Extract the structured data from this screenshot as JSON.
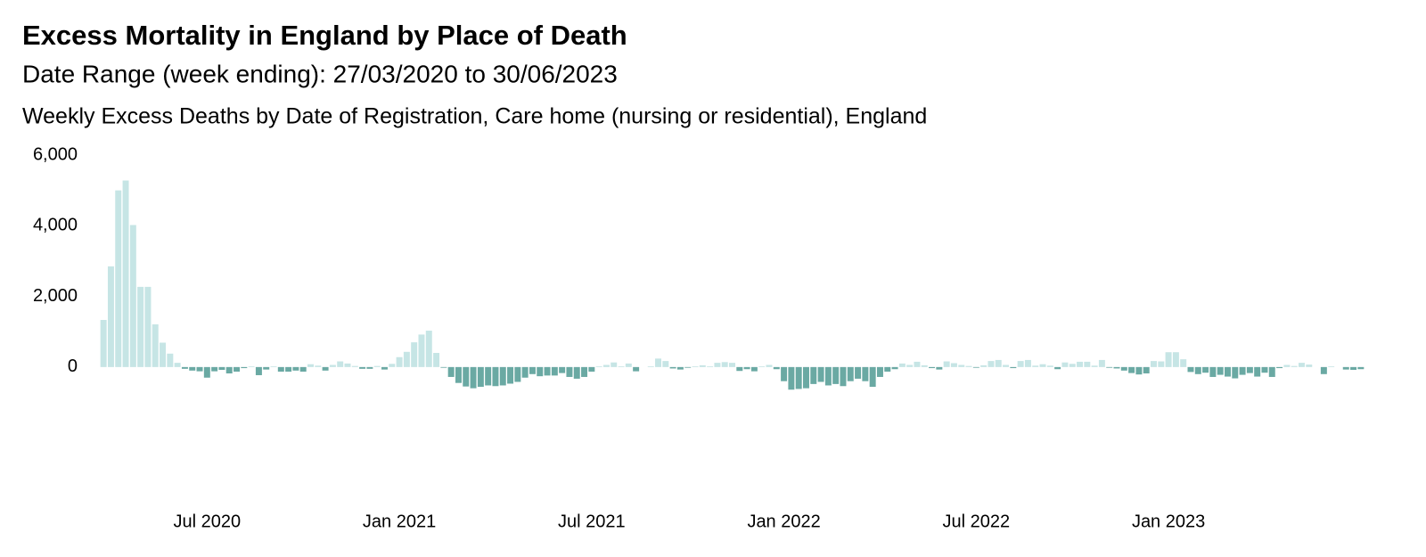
{
  "chart_data": {
    "type": "bar",
    "title": "Excess Mortality in England by Place of Death",
    "subtitle": "Date Range (week ending): 27/03/2020 to 30/06/2023",
    "chart_title": "Weekly Excess Deaths by Date of Registration, Care home (nursing or residential), England",
    "color_positive": "#c6e5e5",
    "color_negative": "#6aa9a3",
    "ylim": [
      -1000,
      6000
    ],
    "yticks": [
      {
        "value": 0,
        "label": "0"
      },
      {
        "value": 2000,
        "label": "2,000"
      },
      {
        "value": 4000,
        "label": "4,000"
      },
      {
        "value": 6000,
        "label": "6,000"
      }
    ],
    "categories": [
      null,
      null,
      null,
      null,
      null,
      null,
      null,
      null,
      null,
      null,
      null,
      null,
      null,
      null,
      "Jul 2020",
      null,
      null,
      null,
      null,
      null,
      null,
      null,
      null,
      null,
      null,
      null,
      null,
      null,
      null,
      null,
      null,
      null,
      null,
      null,
      null,
      null,
      null,
      null,
      null,
      null,
      "Jan 2021",
      null,
      null,
      null,
      null,
      null,
      null,
      null,
      null,
      null,
      null,
      null,
      null,
      null,
      null,
      null,
      null,
      null,
      null,
      null,
      null,
      null,
      null,
      null,
      null,
      null,
      "Jul 2021",
      null,
      null,
      null,
      null,
      null,
      null,
      null,
      null,
      null,
      null,
      null,
      null,
      null,
      null,
      null,
      null,
      null,
      null,
      null,
      null,
      null,
      null,
      null,
      null,
      null,
      "Jan 2022",
      null,
      null,
      null,
      null,
      null,
      null,
      null,
      null,
      null,
      null,
      null,
      null,
      null,
      null,
      null,
      null,
      null,
      null,
      null,
      null,
      null,
      null,
      null,
      null,
      null,
      "Jul 2022",
      null,
      null,
      null,
      null,
      null,
      null,
      null,
      null,
      null,
      null,
      null,
      null,
      null,
      null,
      null,
      null,
      null,
      null,
      null,
      null,
      null,
      null,
      null,
      null,
      null,
      "Jan 2023",
      null,
      null,
      null,
      null,
      null,
      null,
      null,
      null,
      null,
      null,
      null,
      null,
      null,
      null,
      null,
      null,
      null,
      null,
      null,
      null,
      null,
      null,
      null,
      null,
      null,
      null
    ],
    "values": [
      1333,
      2850,
      5000,
      5280,
      4020,
      2270,
      2270,
      1210,
      690,
      380,
      120,
      -50,
      -100,
      -120,
      -300,
      -120,
      -80,
      -180,
      -130,
      -30,
      20,
      -230,
      -70,
      20,
      -130,
      -130,
      -100,
      -130,
      80,
      40,
      -100,
      60,
      160,
      100,
      30,
      -50,
      -50,
      30,
      -70,
      90,
      280,
      430,
      700,
      920,
      1030,
      400,
      -20,
      -280,
      -450,
      -550,
      -600,
      -560,
      -520,
      -540,
      -520,
      -470,
      -420,
      -300,
      -200,
      -260,
      -240,
      -240,
      -170,
      -280,
      -330,
      -280,
      -130,
      20,
      60,
      130,
      20,
      100,
      -120,
      0,
      20,
      240,
      170,
      -40,
      -70,
      -20,
      20,
      50,
      20,
      120,
      140,
      120,
      -110,
      -60,
      -120,
      20,
      60,
      -60,
      -400,
      -640,
      -620,
      -600,
      -480,
      -420,
      -520,
      -480,
      -540,
      -400,
      -330,
      -400,
      -560,
      -280,
      -130,
      -60,
      100,
      60,
      150,
      50,
      -30,
      -70,
      160,
      110,
      60,
      30,
      -20,
      50,
      170,
      200,
      60,
      -30,
      170,
      200,
      40,
      80,
      40,
      -60,
      130,
      90,
      150,
      150,
      40,
      200,
      -20,
      -40,
      -100,
      -170,
      -210,
      -180,
      170,
      160,
      420,
      420,
      220,
      -140,
      -200,
      -160,
      -280,
      -220,
      -270,
      -320,
      -220,
      -170,
      -270,
      -160,
      -280,
      -30,
      60,
      30,
      120,
      70,
      0,
      -200,
      20,
      0,
      -70,
      -80,
      -60
    ]
  }
}
